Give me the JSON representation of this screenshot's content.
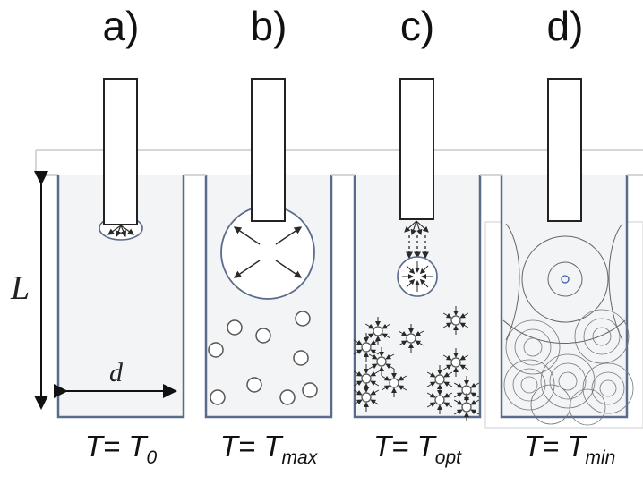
{
  "panels": [
    {
      "label": "a)",
      "T": "T= T",
      "sub": "0"
    },
    {
      "label": "b)",
      "T": "T= T",
      "sub": "max"
    },
    {
      "label": "c)",
      "T": "T= T",
      "sub": "opt"
    },
    {
      "label": "d)",
      "T": "T= T",
      "sub": "min"
    }
  ],
  "dimensions": {
    "length": "L",
    "diameter": "d"
  },
  "colors": {
    "wall": "#5b6b8c",
    "liquid": "#eef0f2",
    "ink": "#2a2a2a"
  }
}
